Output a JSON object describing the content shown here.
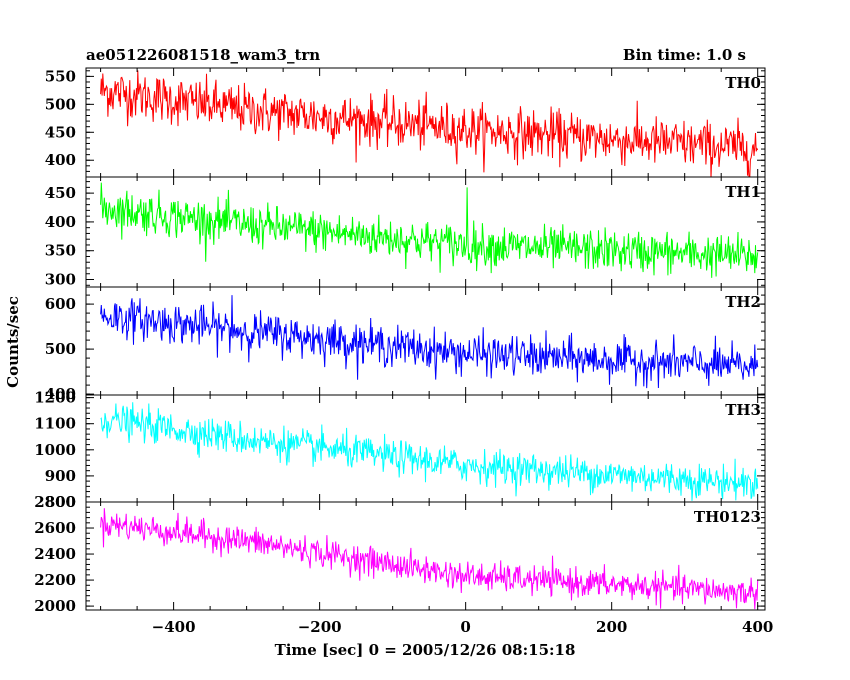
{
  "chart_data": {
    "type": "line",
    "title": "ae051226081518_wam3_trn",
    "bin_time_label": "Bin time: 1.0 s",
    "xlabel": "Time [sec] 0 = 2005/12/26 08:15:18",
    "ylabel": "Counts/sec",
    "xlim": [
      -520,
      410
    ],
    "x_range_data": [
      -500,
      400
    ],
    "x_step": 1,
    "x_ticks": [
      -400,
      -200,
      0,
      200,
      400
    ],
    "grid": false,
    "panels": [
      {
        "name": "TH0",
        "color": "#ff0000",
        "ylim": [
          370,
          565
        ],
        "y_ticks": [
          400,
          450,
          500,
          550
        ],
        "trend": [
          [
            -500,
            525
          ],
          [
            -300,
            490
          ],
          [
            0,
            455
          ],
          [
            400,
            420
          ]
        ],
        "noise_sd": 22,
        "spikes": []
      },
      {
        "name": "TH1",
        "color": "#00ff00",
        "ylim": [
          287,
          478
        ],
        "y_ticks": [
          300,
          350,
          400,
          450
        ],
        "trend": [
          [
            -500,
            425
          ],
          [
            -300,
            395
          ],
          [
            0,
            360
          ],
          [
            400,
            340
          ]
        ],
        "noise_sd": 18,
        "spikes": [
          [
            2,
            460
          ]
        ]
      },
      {
        "name": "TH2",
        "color": "#0000ff",
        "ylim": [
          398,
          638
        ],
        "y_ticks": [
          400,
          500,
          600
        ],
        "trend": [
          [
            -500,
            575
          ],
          [
            -300,
            540
          ],
          [
            0,
            490
          ],
          [
            400,
            460
          ]
        ],
        "noise_sd": 22,
        "spikes": [
          [
            -320,
            620
          ]
        ]
      },
      {
        "name": "TH3",
        "color": "#00ffff",
        "ylim": [
          800,
          1210
        ],
        "y_ticks": [
          800,
          900,
          1000,
          1100,
          1200
        ],
        "trend": [
          [
            -500,
            1120
          ],
          [
            -300,
            1040
          ],
          [
            0,
            940
          ],
          [
            400,
            870
          ]
        ],
        "noise_sd": 32,
        "spikes": []
      },
      {
        "name": "TH0123",
        "color": "#ff00ff",
        "ylim": [
          1970,
          2800
        ],
        "y_ticks": [
          2000,
          2200,
          2400,
          2600,
          2800
        ],
        "trend": [
          [
            -500,
            2640
          ],
          [
            -300,
            2500
          ],
          [
            0,
            2230
          ],
          [
            400,
            2100
          ]
        ],
        "noise_sd": 55,
        "spikes": []
      }
    ]
  }
}
